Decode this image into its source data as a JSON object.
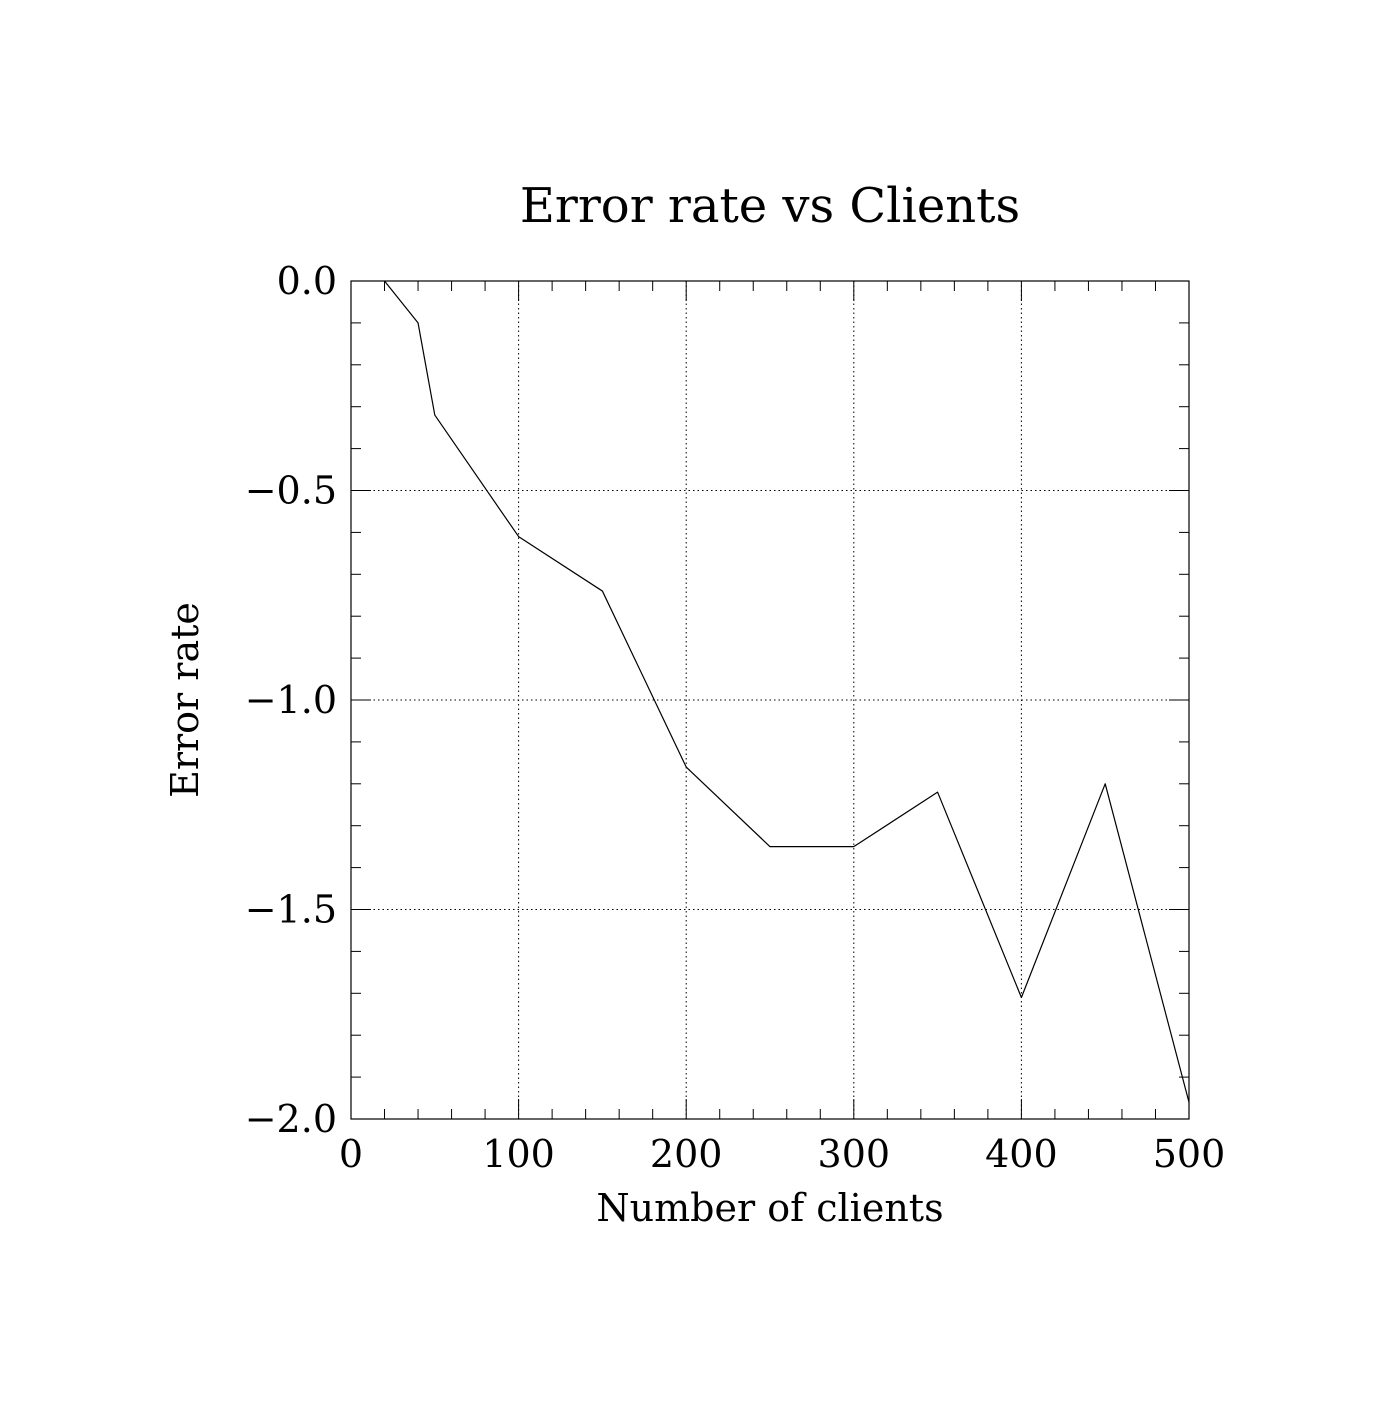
{
  "chart_data": {
    "type": "line",
    "title": "Error rate vs Clients",
    "xlabel": "Number of clients",
    "ylabel": "Error rate",
    "xlim": [
      0,
      500
    ],
    "ylim": [
      -2.0,
      0.0
    ],
    "x_ticks": [
      0,
      100,
      200,
      300,
      400,
      500
    ],
    "x_tick_labels": [
      "0",
      "100",
      "200",
      "300",
      "400",
      "500"
    ],
    "y_ticks": [
      0.0,
      -0.5,
      -1.0,
      -1.5,
      -2.0
    ],
    "y_tick_labels": [
      "0.0",
      "−0.5",
      "−1.0",
      "−1.5",
      "−2.0"
    ],
    "x_minor_step": 20,
    "y_minor_step": 0.1,
    "grid": true,
    "grid_style": "dotted",
    "series": [
      {
        "x": [
          20,
          40,
          50,
          100,
          150,
          200,
          250,
          300,
          350,
          400,
          450,
          500
        ],
        "y": [
          0.0,
          -0.1,
          -0.32,
          -0.61,
          -0.74,
          -1.16,
          -1.35,
          -1.35,
          -1.22,
          -1.71,
          -1.2,
          -1.96
        ],
        "color": "#000000"
      }
    ]
  }
}
